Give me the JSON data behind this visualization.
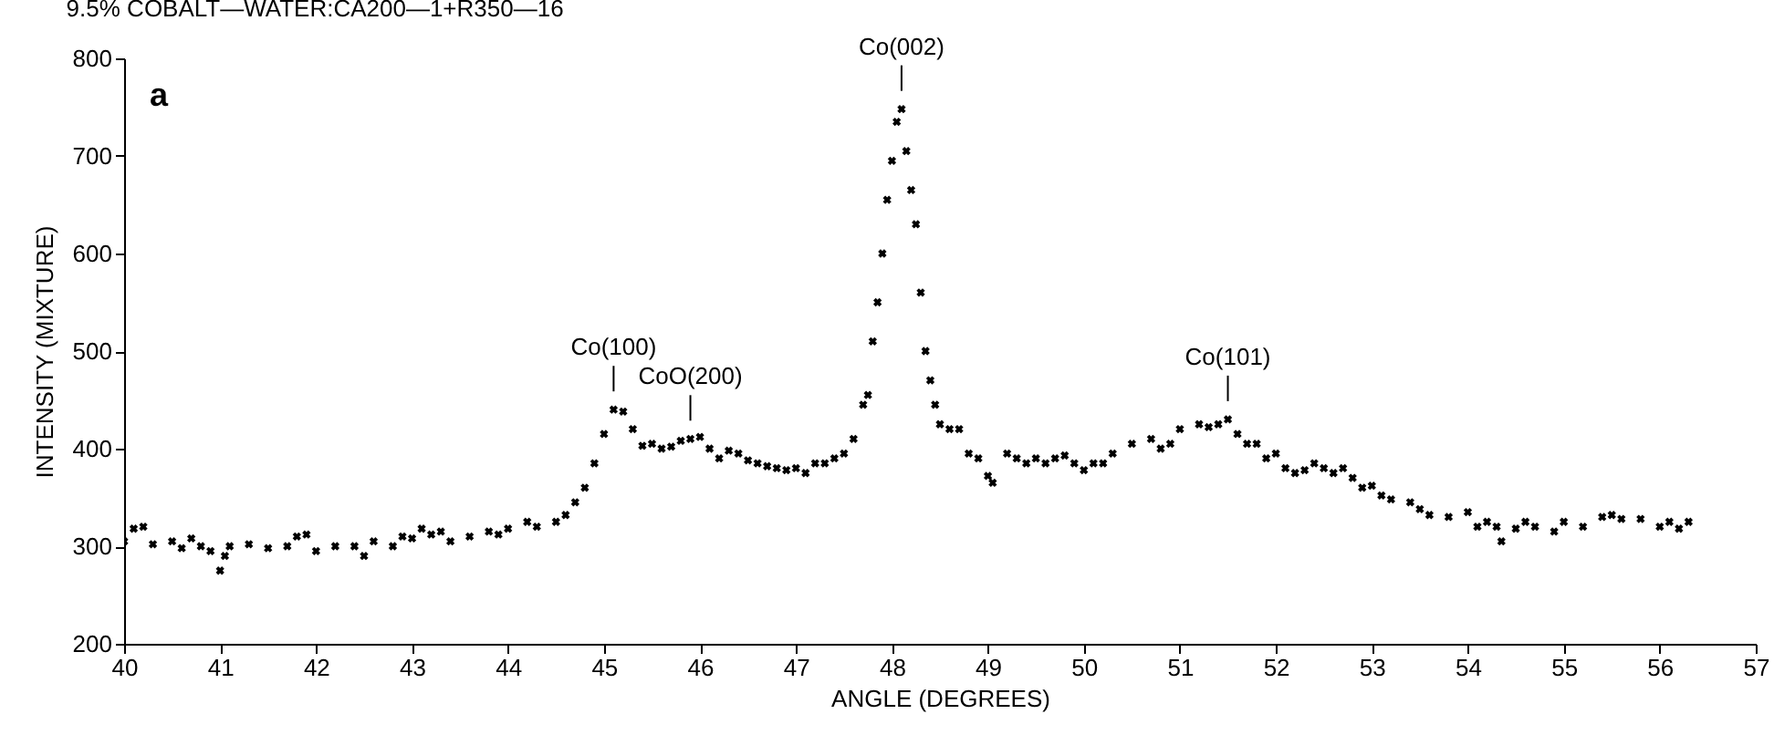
{
  "chart_data": {
    "type": "scatter",
    "title": "9.5% COBALT—WATER:CA200—1+R350—16",
    "xlabel": "ANGLE (DEGREES)",
    "ylabel": "INTENSITY (MIXTURE)",
    "x": [
      40.0,
      40.1,
      40.2,
      40.3,
      40.5,
      40.6,
      40.7,
      40.8,
      40.9,
      41.0,
      41.05,
      41.1,
      41.3,
      41.5,
      41.7,
      41.8,
      41.9,
      42.0,
      42.2,
      42.4,
      42.5,
      42.6,
      42.8,
      42.9,
      43.0,
      43.1,
      43.2,
      43.3,
      43.4,
      43.6,
      43.8,
      43.9,
      44.0,
      44.2,
      44.3,
      44.5,
      44.6,
      44.7,
      44.8,
      44.9,
      45.0,
      45.1,
      45.2,
      45.3,
      45.4,
      45.5,
      45.6,
      45.7,
      45.8,
      45.9,
      46.0,
      46.1,
      46.2,
      46.3,
      46.4,
      46.5,
      46.6,
      46.7,
      46.8,
      46.9,
      47.0,
      47.1,
      47.2,
      47.3,
      47.4,
      47.5,
      47.6,
      47.7,
      47.75,
      47.8,
      47.85,
      47.9,
      47.95,
      48.0,
      48.05,
      48.1,
      48.15,
      48.2,
      48.25,
      48.3,
      48.35,
      48.4,
      48.45,
      48.5,
      48.6,
      48.7,
      48.8,
      48.9,
      49.0,
      49.05,
      49.2,
      49.3,
      49.4,
      49.5,
      49.6,
      49.7,
      49.8,
      49.9,
      50.0,
      50.1,
      50.2,
      50.3,
      50.5,
      50.7,
      50.8,
      50.9,
      51.0,
      51.2,
      51.3,
      51.4,
      51.5,
      51.6,
      51.7,
      51.8,
      51.9,
      52.0,
      52.1,
      52.2,
      52.3,
      52.4,
      52.5,
      52.6,
      52.7,
      52.8,
      52.9,
      53.0,
      53.1,
      53.2,
      53.4,
      53.5,
      53.6,
      53.8,
      54.0,
      54.1,
      54.2,
      54.3,
      54.35,
      54.5,
      54.6,
      54.7,
      54.9,
      55.0,
      55.2,
      55.4,
      55.5,
      55.6,
      55.8,
      56.0,
      56.1,
      56.2,
      56.3
    ],
    "series": [
      {
        "color": "#000000",
        "values": [
          305,
          318,
          320,
          302,
          305,
          298,
          308,
          300,
          295,
          275,
          290,
          300,
          302,
          298,
          300,
          310,
          312,
          295,
          300,
          300,
          290,
          305,
          300,
          310,
          308,
          318,
          312,
          315,
          305,
          310,
          315,
          312,
          318,
          325,
          320,
          325,
          332,
          345,
          360,
          385,
          415,
          440,
          438,
          420,
          403,
          405,
          400,
          402,
          408,
          410,
          412,
          400,
          390,
          398,
          395,
          388,
          385,
          382,
          380,
          378,
          380,
          375,
          385,
          385,
          390,
          395,
          410,
          445,
          455,
          510,
          550,
          600,
          655,
          695,
          735,
          748,
          705,
          665,
          630,
          560,
          500,
          470,
          445,
          425,
          420,
          420,
          395,
          390,
          372,
          365,
          395,
          390,
          385,
          390,
          385,
          390,
          393,
          385,
          378,
          385,
          385,
          395,
          405,
          410,
          400,
          405,
          420,
          425,
          422,
          425,
          430,
          415,
          405,
          405,
          390,
          395,
          380,
          375,
          378,
          385,
          380,
          375,
          380,
          370,
          360,
          362,
          352,
          348,
          345,
          338,
          332,
          330,
          335,
          320,
          325,
          320,
          305,
          318,
          325,
          320,
          315,
          325,
          320,
          330,
          332,
          328,
          328,
          320,
          325,
          318,
          325
        ]
      }
    ],
    "xlim": [
      40,
      57
    ],
    "xticks": [
      40,
      41,
      42,
      43,
      44,
      45,
      46,
      47,
      48,
      49,
      50,
      51,
      52,
      53,
      54,
      55,
      56,
      57
    ],
    "ylim": [
      200,
      800
    ],
    "yticks": [
      200,
      300,
      400,
      500,
      600,
      700,
      800
    ],
    "marker": "cross",
    "annotations": [
      "a",
      {
        "text": "Co(100)",
        "x": 45.1,
        "y": 440
      },
      {
        "text": "CoO(200)",
        "x": 45.9,
        "y": 410
      },
      {
        "text": "Co(002)",
        "x": 48.1,
        "y": 748
      },
      {
        "text": "Co(101)",
        "x": 51.5,
        "y": 430
      }
    ]
  }
}
